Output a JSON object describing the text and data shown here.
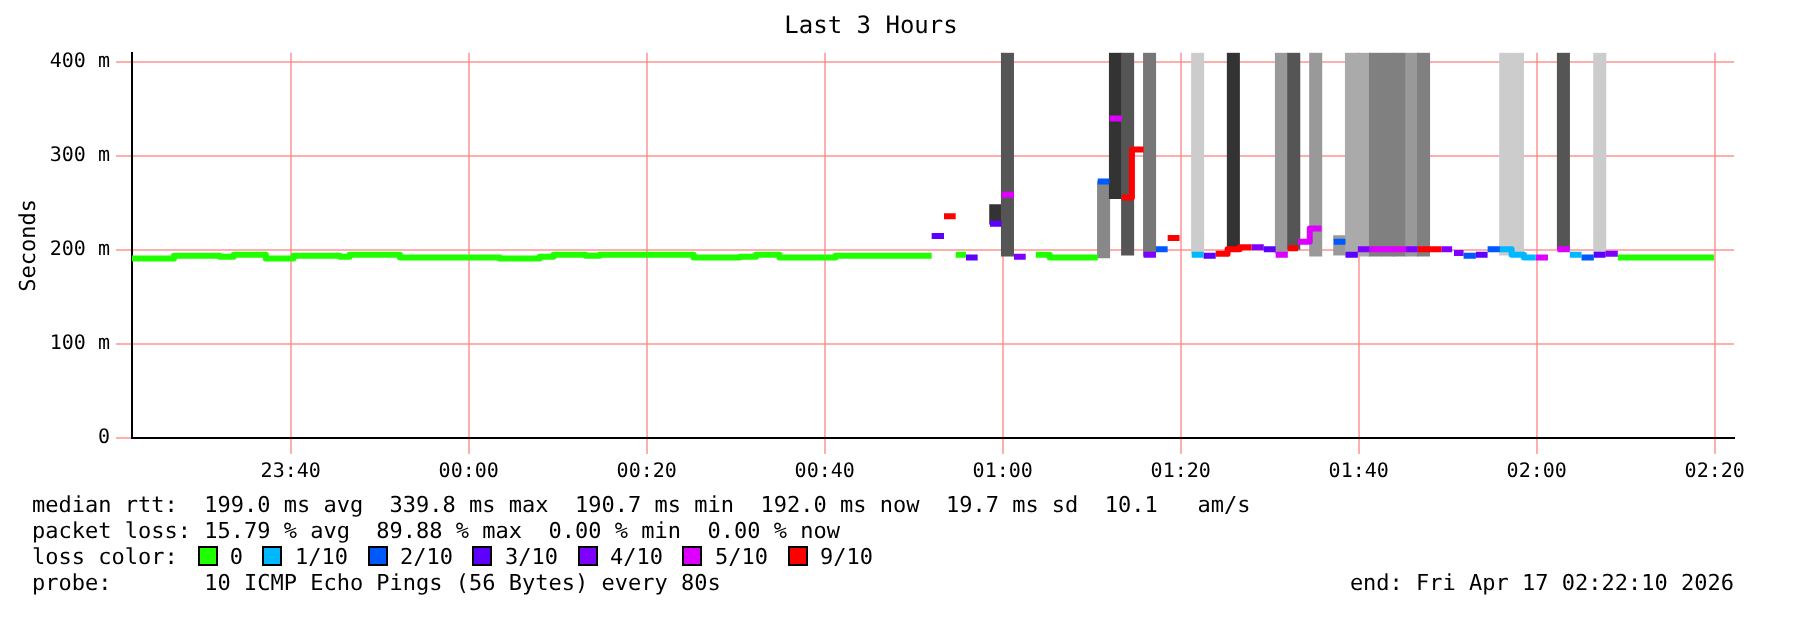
{
  "chart_data": {
    "type": "step",
    "title": "Last 3 Hours",
    "ylabel": "Seconds",
    "legend_title": "loss color:",
    "legend": "bottom",
    "grid": true,
    "line_style": "solid",
    "xlim": [
      "2026-04-16T23:22:10",
      "2026-04-17T02:22:10"
    ],
    "xticks": [
      {
        "value": "2026-04-16T23:40",
        "label": "23:40"
      },
      {
        "value": "2026-04-17T00:00",
        "label": "00:00"
      },
      {
        "value": "2026-04-17T00:20",
        "label": "00:20"
      },
      {
        "value": "2026-04-17T00:40",
        "label": "00:40"
      },
      {
        "value": "2026-04-17T01:00",
        "label": "01:00"
      },
      {
        "value": "2026-04-17T01:20",
        "label": "01:20"
      },
      {
        "value": "2026-04-17T01:40",
        "label": "01:40"
      },
      {
        "value": "2026-04-17T02:00",
        "label": "02:00"
      },
      {
        "value": "2026-04-17T02:20",
        "label": "02:20"
      }
    ],
    "ylim": [
      0,
      410
    ],
    "yticks": [
      {
        "value": 0,
        "label": "0"
      },
      {
        "value": 100,
        "label": "100 m"
      },
      {
        "value": 200,
        "label": "200 m"
      },
      {
        "value": 300,
        "label": "300 m"
      },
      {
        "value": 400,
        "label": "400 m"
      }
    ],
    "series": [
      {
        "type": "bar",
        "x": [
          "2026-04-17T00:59:13",
          "2026-04-17T01:00:32",
          "2026-04-17T01:11:20",
          "2026-04-17T01:12:40",
          "2026-04-17T01:14:02",
          "2026-04-17T01:16:30",
          "2026-04-17T01:21:54",
          "2026-04-17T01:25:55",
          "2026-04-17T01:31:19",
          "2026-04-17T01:32:42",
          "2026-04-17T01:35:10",
          "2026-04-17T01:37:52",
          "2026-04-17T01:39:11",
          "2026-04-17T01:40:34",
          "2026-04-17T01:41:53",
          "2026-04-17T01:43:16",
          "2026-04-17T01:44:35",
          "2026-04-17T01:45:58",
          "2026-04-17T01:47:17",
          "2026-04-17T01:56:31",
          "2026-04-17T01:57:50",
          "2026-04-17T02:03:00",
          "2026-04-17T02:07:05"
        ],
        "base": [
          228,
          194,
          192,
          255,
          195,
          194,
          197,
          201,
          197,
          201,
          194,
          195,
          194,
          194,
          194,
          194,
          194,
          194,
          194,
          195,
          195,
          201,
          194
        ],
        "values": [
          20,
          216,
          81,
          155,
          215,
          216,
          213,
          209,
          213,
          209,
          216,
          20,
          216,
          216,
          216,
          216,
          216,
          216,
          216,
          215,
          215,
          209,
          216
        ],
        "colors": [
          "#333333",
          "#555555",
          "#888888",
          "#333333",
          "#555555",
          "#777777",
          "#cccccc",
          "#333333",
          "#999999",
          "#555555",
          "#999999",
          "#999999",
          "#aaaaaa",
          "#aaaaaa",
          "#808080",
          "#808080",
          "#808080",
          "#999999",
          "#808080",
          "#cccccc",
          "#cccccc",
          "#555555",
          "#cccccc"
        ]
      },
      {
        "name": "0",
        "color": "#20ff00",
        "x": [
          "2026-04-16T23:22:10",
          "2026-04-16T23:26:53",
          "2026-04-16T23:32:02",
          "2026-04-16T23:33:36",
          "2026-04-16T23:37:12",
          "2026-04-16T23:40:19",
          "2026-04-16T23:45:32",
          "2026-04-16T23:46:37",
          "2026-04-16T23:52:16",
          "2026-04-17T00:03:29",
          "2026-04-17T00:07:59",
          "2026-04-17T00:09:32",
          "2026-04-17T00:13:08",
          "2026-04-17T00:14:42",
          "2026-04-17T00:25:16",
          "2026-04-17T00:30:29",
          "2026-04-17T00:32:17",
          "2026-04-17T00:34:55",
          "2026-04-17T00:41:13",
          "2026-04-17T00:52:01",
          "2026-04-17T00:52:12",
          "2026-04-17T00:54:43",
          "2026-04-17T00:55:52",
          "2026-04-17T00:56:24",
          "2026-04-17T01:03:43",
          "2026-04-17T01:05:17",
          "2026-04-17T01:10:41",
          "2026-04-17T01:10:48",
          "2026-04-17T02:09:07",
          "2026-04-17T02:19:55"
        ],
        "values": [
          191,
          194,
          193,
          195,
          191,
          194,
          193,
          195,
          192,
          191,
          193,
          195,
          194,
          195,
          192,
          193,
          195,
          192,
          194,
          194,
          null,
          195,
          195,
          null,
          195,
          192,
          192,
          null,
          192,
          192
        ]
      },
      {
        "name": "1/10",
        "color": "#00b8ff",
        "x": [
          "2026-04-17T01:21:14",
          "2026-04-17T01:22:34",
          "2026-04-17T01:22:48",
          "2026-04-17T01:55:52",
          "2026-04-17T01:57:11",
          "2026-04-17T01:58:34",
          "2026-04-17T01:59:53",
          "2026-04-17T02:00:00",
          "2026-04-17T02:03:43",
          "2026-04-17T02:05:02"
        ],
        "values": [
          195,
          195,
          null,
          201,
          195,
          192,
          192,
          null,
          195,
          195
        ]
      },
      {
        "name": "2/10",
        "color": "#0059ff",
        "x": [
          "2026-04-17T01:10:41",
          "2026-04-17T01:12:00",
          "2026-04-17T01:12:36",
          "2026-04-17T01:17:13",
          "2026-04-17T01:18:32",
          "2026-04-17T01:18:36",
          "2026-04-17T01:37:12",
          "2026-04-17T01:38:31",
          "2026-04-17T01:39:00",
          "2026-04-17T01:51:47",
          "2026-04-17T01:53:10",
          "2026-04-17T01:53:24",
          "2026-04-17T01:54:29",
          "2026-04-17T01:55:52",
          "2026-04-17T01:56:24",
          "2026-04-17T02:05:02",
          "2026-04-17T02:06:25"
        ],
        "values": [
          273,
          273,
          null,
          201,
          201,
          null,
          209,
          209,
          null,
          194,
          194,
          null,
          201,
          201,
          null,
          192,
          192
        ]
      },
      {
        "name": "3/10",
        "color": "#5e00ff",
        "x": [
          "2026-04-17T00:52:01",
          "2026-04-17T00:53:24",
          "2026-04-17T00:54:00",
          "2026-04-17T00:55:52",
          "2026-04-17T00:57:11",
          "2026-04-17T00:57:36",
          "2026-04-17T00:58:34",
          "2026-04-17T00:59:53",
          "2026-04-17T01:00:00",
          "2026-04-17T01:22:34",
          "2026-04-17T01:23:56",
          "2026-04-17T01:24:00",
          "2026-04-17T01:29:20",
          "2026-04-17T01:30:40",
          "2026-04-17T01:31:12",
          "2026-04-17T01:38:31",
          "2026-04-17T01:39:54",
          "2026-04-17T01:40:12",
          "2026-04-17T01:53:10",
          "2026-04-17T01:54:29",
          "2026-04-17T01:54:36",
          "2026-04-17T02:06:25",
          "2026-04-17T02:07:44"
        ],
        "values": [
          215,
          215,
          null,
          192,
          192,
          null,
          228,
          228,
          null,
          194,
          194,
          null,
          201,
          201,
          null,
          195,
          195,
          null,
          195,
          195,
          null,
          195,
          195
        ]
      },
      {
        "name": "4/10",
        "color": "#8000ff",
        "x": [
          "2026-04-17T01:01:16",
          "2026-04-17T01:02:35",
          "2026-04-17T01:03:00",
          "2026-04-17T01:15:50",
          "2026-04-17T01:17:13",
          "2026-04-17T01:17:24",
          "2026-04-17T01:27:58",
          "2026-04-17T01:29:20",
          "2026-04-17T01:29:24",
          "2026-04-17T01:39:54",
          "2026-04-17T01:41:13",
          "2026-04-17T01:41:24",
          "2026-04-17T01:45:18",
          "2026-04-17T01:46:37",
          "2026-04-17T01:46:48",
          "2026-04-17T01:49:19",
          "2026-04-17T01:50:30",
          "2026-04-17T01:50:36",
          "2026-04-17T01:50:42",
          "2026-04-17T01:51:47",
          "2026-04-17T01:52:12",
          "2026-04-17T02:07:44",
          "2026-04-17T02:09:07"
        ],
        "values": [
          193,
          193,
          null,
          195,
          195,
          null,
          203,
          203,
          null,
          201,
          201,
          null,
          201,
          201,
          null,
          201,
          201,
          null,
          197,
          197,
          null,
          196,
          196
        ]
      },
      {
        "name": "5/10",
        "color": "#dd00ff",
        "x": [
          "2026-04-17T00:59:53",
          "2026-04-17T01:01:16",
          "2026-04-17T01:01:48",
          "2026-04-17T01:12:00",
          "2026-04-17T01:13:23",
          "2026-04-17T01:13:48",
          "2026-04-17T01:30:40",
          "2026-04-17T01:32:02",
          "2026-04-17T01:32:24",
          "2026-04-17T01:33:11",
          "2026-04-17T01:34:30",
          "2026-04-17T01:35:49",
          "2026-04-17T01:36:00",
          "2026-04-17T01:41:13",
          "2026-04-17T01:45:18",
          "2026-04-17T01:45:36",
          "2026-04-17T01:59:53",
          "2026-04-17T02:01:16",
          "2026-04-17T02:01:48",
          "2026-04-17T02:02:20",
          "2026-04-17T02:03:43"
        ],
        "values": [
          259,
          259,
          null,
          340,
          340,
          null,
          195,
          195,
          null,
          209,
          223,
          223,
          null,
          201,
          201,
          null,
          192,
          192,
          null,
          201,
          201
        ]
      },
      {
        "name": "9/10",
        "color": "#ff0000",
        "x": [
          "2026-04-17T00:53:24",
          "2026-04-17T00:54:43",
          "2026-04-17T00:55:12",
          "2026-04-17T01:13:23",
          "2026-04-17T01:14:31",
          "2026-04-17T01:15:50",
          "2026-04-17T01:16:12",
          "2026-04-17T01:18:32",
          "2026-04-17T01:19:52",
          "2026-04-17T01:20:24",
          "2026-04-17T01:23:56",
          "2026-04-17T01:25:16",
          "2026-04-17T01:26:38",
          "2026-04-17T01:27:58",
          "2026-04-17T01:28:12",
          "2026-04-17T01:32:02",
          "2026-04-17T01:33:11",
          "2026-04-17T01:33:36",
          "2026-04-17T01:46:37",
          "2026-04-17T01:49:19"
        ],
        "values": [
          236,
          236,
          null,
          256,
          307,
          307,
          null,
          213,
          213,
          null,
          196,
          201,
          203,
          203,
          null,
          202,
          202,
          null,
          201,
          201
        ]
      }
    ],
    "annotations": [
      "median rtt:  199.0 ms avg  339.8 ms max  190.7 ms min  192.0 ms now  19.7 ms sd  10.1   am/s",
      "packet loss: 15.79 % avg  89.88 % max  0.00 % min  0.00 % now",
      "probe:       10 ICMP Echo Pings (56 Bytes) every 80s",
      "end: Fri Apr 17 02:22:10 2026"
    ]
  }
}
